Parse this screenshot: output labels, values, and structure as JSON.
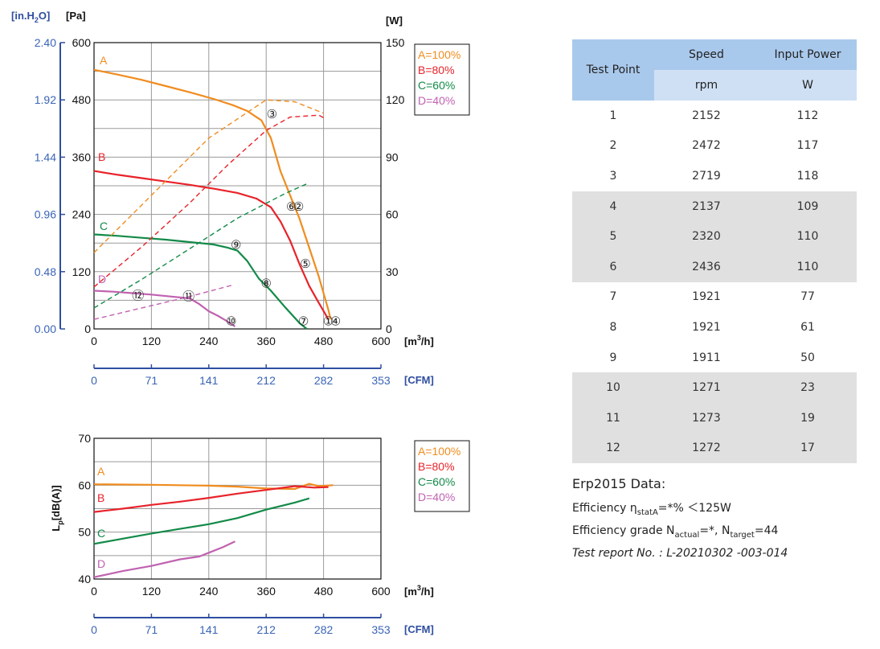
{
  "colors": {
    "A": "#f08c1e",
    "B": "#e8232a",
    "C": "#128a48",
    "D": "#c062b0",
    "axis_blue": "#2f4ea0",
    "tick_blue": "#3a64b6"
  },
  "chart_data": [
    {
      "type": "line",
      "title": "",
      "xlabel": "[m3/h]",
      "xlabel2": "[CFM]",
      "ylabel_left": "[Pa]",
      "ylabel_left2": "[in.H2O]",
      "ylabel_right": "[W]",
      "xlim": [
        0,
        600
      ],
      "ylim": [
        0,
        600
      ],
      "y2lim": [
        0,
        150
      ],
      "x_ticks": [
        "0",
        "120",
        "240",
        "360",
        "480",
        "600"
      ],
      "x2_ticks": [
        "0",
        "71",
        "141",
        "212",
        "282",
        "353"
      ],
      "y_ticks": [
        "0",
        "120",
        "240",
        "360",
        "480",
        "600"
      ],
      "y_inh2o_ticks": [
        "0.00",
        "0.48",
        "0.96",
        "1.44",
        "1.92",
        "2.40"
      ],
      "y2_ticks": [
        "0",
        "30",
        "60",
        "90",
        "120",
        "150"
      ],
      "legend": [
        "A=100%",
        "B=80%",
        "C=60%",
        "D=40%"
      ],
      "legend_position": "top-right",
      "grid": true,
      "series": [
        {
          "name": "A=100%",
          "letter": "A",
          "kind": "pressure",
          "points": [
            [
              0,
              543
            ],
            [
              50,
              533
            ],
            [
              100,
              522
            ],
            [
              150,
              509
            ],
            [
              200,
              496
            ],
            [
              250,
              482
            ],
            [
              290,
              469
            ],
            [
              320,
              457
            ],
            [
              350,
              437
            ],
            [
              370,
              400
            ],
            [
              390,
              330
            ],
            [
              410,
              280
            ],
            [
              430,
              230
            ],
            [
              450,
              170
            ],
            [
              470,
              110
            ],
            [
              480,
              75
            ],
            [
              490,
              40
            ],
            [
              495,
              20
            ]
          ]
        },
        {
          "name": "B=80%",
          "letter": "B",
          "kind": "pressure",
          "points": [
            [
              0,
              331
            ],
            [
              50,
              323
            ],
            [
              100,
              316
            ],
            [
              150,
              309
            ],
            [
              200,
              302
            ],
            [
              250,
              294
            ],
            [
              300,
              285
            ],
            [
              340,
              273
            ],
            [
              370,
              255
            ],
            [
              390,
              225
            ],
            [
              410,
              185
            ],
            [
              430,
              135
            ],
            [
              450,
              90
            ],
            [
              470,
              55
            ],
            [
              490,
              20
            ]
          ]
        },
        {
          "name": "C=60%",
          "letter": "C",
          "kind": "pressure",
          "points": [
            [
              0,
              198
            ],
            [
              50,
              195
            ],
            [
              100,
              191
            ],
            [
              150,
              187
            ],
            [
              200,
              182
            ],
            [
              250,
              177
            ],
            [
              280,
              170
            ],
            [
              300,
              164
            ],
            [
              320,
              143
            ],
            [
              345,
              105
            ],
            [
              370,
              80
            ],
            [
              400,
              45
            ],
            [
              430,
              12
            ],
            [
              445,
              0
            ]
          ]
        },
        {
          "name": "D=40%",
          "letter": "D",
          "kind": "pressure",
          "points": [
            [
              0,
              80
            ],
            [
              40,
              78
            ],
            [
              80,
              75
            ],
            [
              120,
              72
            ],
            [
              160,
              68
            ],
            [
              200,
              64
            ],
            [
              220,
              52
            ],
            [
              240,
              37
            ],
            [
              260,
              27
            ],
            [
              280,
              15
            ],
            [
              295,
              5
            ]
          ]
        },
        {
          "letter": "A",
          "kind": "power",
          "points": [
            [
              0,
              40
            ],
            [
              120,
              70
            ],
            [
              240,
              100
            ],
            [
              300,
              110
            ],
            [
              360,
              120
            ],
            [
              420,
              119
            ],
            [
              480,
              113
            ]
          ]
        },
        {
          "letter": "B",
          "kind": "power",
          "points": [
            [
              0,
              22
            ],
            [
              100,
              43
            ],
            [
              200,
              66
            ],
            [
              280,
              86
            ],
            [
              360,
              104
            ],
            [
              410,
              111
            ],
            [
              470,
              112
            ],
            [
              485,
              110
            ]
          ]
        },
        {
          "letter": "C",
          "kind": "power",
          "points": [
            [
              0,
              11
            ],
            [
              100,
              26
            ],
            [
              200,
              42
            ],
            [
              300,
              58
            ],
            [
              400,
              71
            ],
            [
              445,
              76
            ]
          ]
        },
        {
          "letter": "D",
          "kind": "power",
          "points": [
            [
              0,
              5
            ],
            [
              100,
              11
            ],
            [
              200,
              17
            ],
            [
              290,
              23
            ]
          ]
        }
      ],
      "test_points": [
        {
          "label": "③",
          "x": 372,
          "y": 452
        },
        {
          "label": "②",
          "x": 428,
          "y": 258
        },
        {
          "label": "⑥",
          "x": 413,
          "y": 258
        },
        {
          "label": "⑤",
          "x": 442,
          "y": 138
        },
        {
          "label": "④",
          "x": 505,
          "y": 18
        },
        {
          "label": "①",
          "x": 490,
          "y": 18
        },
        {
          "label": "⑨",
          "x": 297,
          "y": 178
        },
        {
          "label": "⑧",
          "x": 360,
          "y": 97
        },
        {
          "label": "⑦",
          "x": 438,
          "y": 18
        },
        {
          "label": "⑫",
          "x": 92,
          "y": 72
        },
        {
          "label": "⑪",
          "x": 198,
          "y": 70
        },
        {
          "label": "⑩",
          "x": 287,
          "y": 18
        }
      ]
    },
    {
      "type": "line",
      "xlabel": "[m3/h]",
      "xlabel2": "[CFM]",
      "ylabel": "Lp[dB(A)]",
      "xlim": [
        0,
        600
      ],
      "ylim": [
        40,
        70
      ],
      "x_ticks": [
        "0",
        "120",
        "240",
        "360",
        "480",
        "600"
      ],
      "x2_ticks": [
        "0",
        "71",
        "141",
        "212",
        "282",
        "353"
      ],
      "y_ticks": [
        "40",
        "50",
        "60",
        "70"
      ],
      "legend": [
        "A=100%",
        "B=80%",
        "C=60%",
        "D=40%"
      ],
      "legend_position": "top-right",
      "grid": true,
      "series": [
        {
          "name": "A=100%",
          "letter": "A",
          "points": [
            [
              0,
              60.2
            ],
            [
              120,
              60.1
            ],
            [
              240,
              59.9
            ],
            [
              300,
              59.7
            ],
            [
              360,
              59.3
            ],
            [
              420,
              59.2
            ],
            [
              450,
              60.3
            ],
            [
              470,
              59.8
            ],
            [
              500,
              60.0
            ]
          ]
        },
        {
          "name": "B=80%",
          "letter": "B",
          "points": [
            [
              0,
              54.3
            ],
            [
              60,
              55.0
            ],
            [
              120,
              55.8
            ],
            [
              180,
              56.5
            ],
            [
              240,
              57.3
            ],
            [
              300,
              58.2
            ],
            [
              360,
              59.0
            ],
            [
              420,
              59.8
            ],
            [
              460,
              59.5
            ],
            [
              490,
              59.6
            ]
          ]
        },
        {
          "name": "C=60%",
          "letter": "C",
          "points": [
            [
              0,
              47.5
            ],
            [
              60,
              48.6
            ],
            [
              120,
              49.7
            ],
            [
              180,
              50.7
            ],
            [
              240,
              51.7
            ],
            [
              300,
              53.0
            ],
            [
              360,
              54.8
            ],
            [
              420,
              56.3
            ],
            [
              450,
              57.2
            ]
          ]
        },
        {
          "name": "D=40%",
          "letter": "D",
          "points": [
            [
              0,
              40.4
            ],
            [
              60,
              41.7
            ],
            [
              120,
              42.8
            ],
            [
              180,
              44.2
            ],
            [
              220,
              44.8
            ],
            [
              240,
              45.6
            ],
            [
              270,
              46.8
            ],
            [
              295,
              48.0
            ]
          ]
        }
      ]
    }
  ],
  "table": {
    "headers": {
      "test_point": "Test Point",
      "speed": "Speed",
      "input_power": "Input Power",
      "speed_unit": "rpm",
      "power_unit": "W"
    },
    "rows": [
      [
        "1",
        "2152",
        "112"
      ],
      [
        "2",
        "2472",
        "117"
      ],
      [
        "3",
        "2719",
        "118"
      ],
      [
        "4",
        "2137",
        "109"
      ],
      [
        "5",
        "2320",
        "110"
      ],
      [
        "6",
        "2436",
        "110"
      ],
      [
        "7",
        "1921",
        "77"
      ],
      [
        "8",
        "1921",
        "61"
      ],
      [
        "9",
        "1911",
        "50"
      ],
      [
        "10",
        "1271",
        "23"
      ],
      [
        "11",
        "1273",
        "19"
      ],
      [
        "12",
        "1272",
        "17"
      ]
    ]
  },
  "erp": {
    "title": "Erp2015  Data:",
    "eff_prefix": "Efficiency η",
    "eff_sub": "statA",
    "eff_suffix": "=*% ＜125W",
    "grade_prefix": "Efficiency grade  N",
    "grade_sub1": "actual",
    "grade_mid": "=*, N",
    "grade_sub2": "target",
    "grade_suffix": "=44",
    "report": "Test report No. : L-20210302 -003-014"
  }
}
